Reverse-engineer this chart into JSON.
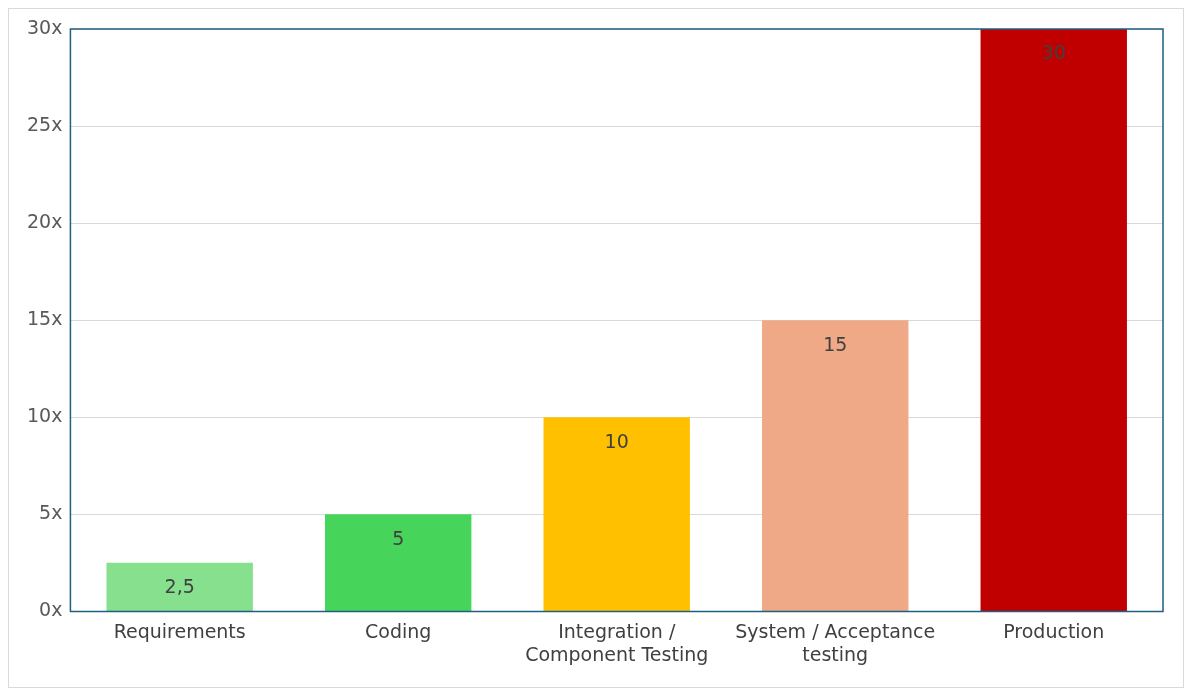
{
  "chart_data": {
    "type": "bar",
    "categories": [
      "Requirements",
      "Coding",
      "Integration / Component Testing",
      "System / Acceptance testing",
      "Production"
    ],
    "values": [
      2.5,
      5,
      10,
      15,
      30
    ],
    "colors": [
      "#86e08e",
      "#47d45a",
      "#ffc000",
      "#f0a986",
      "#c00000"
    ],
    "value_labels": [
      "2,5",
      "5",
      "10",
      "15",
      "30"
    ],
    "ylim": [
      0,
      30
    ],
    "yticks": [
      {
        "value": 0,
        "label": "0x"
      },
      {
        "value": 5,
        "label": "5x"
      },
      {
        "value": 10,
        "label": "10x"
      },
      {
        "value": 15,
        "label": "15x"
      },
      {
        "value": 20,
        "label": "20x"
      },
      {
        "value": 25,
        "label": "25x"
      },
      {
        "value": 30,
        "label": "30x"
      }
    ],
    "grid": "y",
    "legend": false
  }
}
